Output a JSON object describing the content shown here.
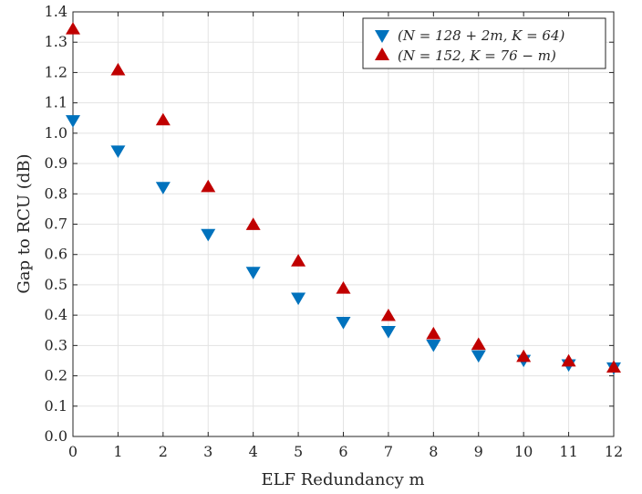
{
  "chart_data": {
    "type": "scatter",
    "xlabel": "ELF Redundancy m",
    "ylabel": "Gap to RCU (dB)",
    "xlim": [
      0,
      12
    ],
    "ylim": [
      0.0,
      1.4
    ],
    "grid": true,
    "legend_position": "top-right",
    "x_ticks": [
      "0",
      "1",
      "2",
      "3",
      "4",
      "5",
      "6",
      "7",
      "8",
      "9",
      "10",
      "11",
      "12"
    ],
    "y_ticks": [
      "0.0",
      "0.1",
      "0.2",
      "0.3",
      "0.4",
      "0.5",
      "0.6",
      "0.7",
      "0.8",
      "0.9",
      "1.0",
      "1.1",
      "1.2",
      "1.3",
      "1.4"
    ],
    "series": [
      {
        "name": "(N = 128 + 2m, K = 64)",
        "marker": "triangle-down",
        "color": "#0072BD",
        "x": [
          0,
          1,
          2,
          3,
          4,
          5,
          6,
          7,
          8,
          9,
          10,
          11,
          12
        ],
        "y": [
          1.04,
          0.94,
          0.82,
          0.665,
          0.54,
          0.455,
          0.375,
          0.345,
          0.3,
          0.265,
          0.25,
          0.235,
          0.225
        ]
      },
      {
        "name": "(N = 152, K = 76 − m)",
        "marker": "triangle-up",
        "color": "#C00000",
        "x": [
          0,
          1,
          2,
          3,
          4,
          5,
          6,
          7,
          8,
          9,
          10,
          11,
          12
        ],
        "y": [
          1.345,
          1.21,
          1.045,
          0.825,
          0.7,
          0.58,
          0.49,
          0.4,
          0.34,
          0.305,
          0.265,
          0.25,
          0.23
        ]
      }
    ]
  }
}
